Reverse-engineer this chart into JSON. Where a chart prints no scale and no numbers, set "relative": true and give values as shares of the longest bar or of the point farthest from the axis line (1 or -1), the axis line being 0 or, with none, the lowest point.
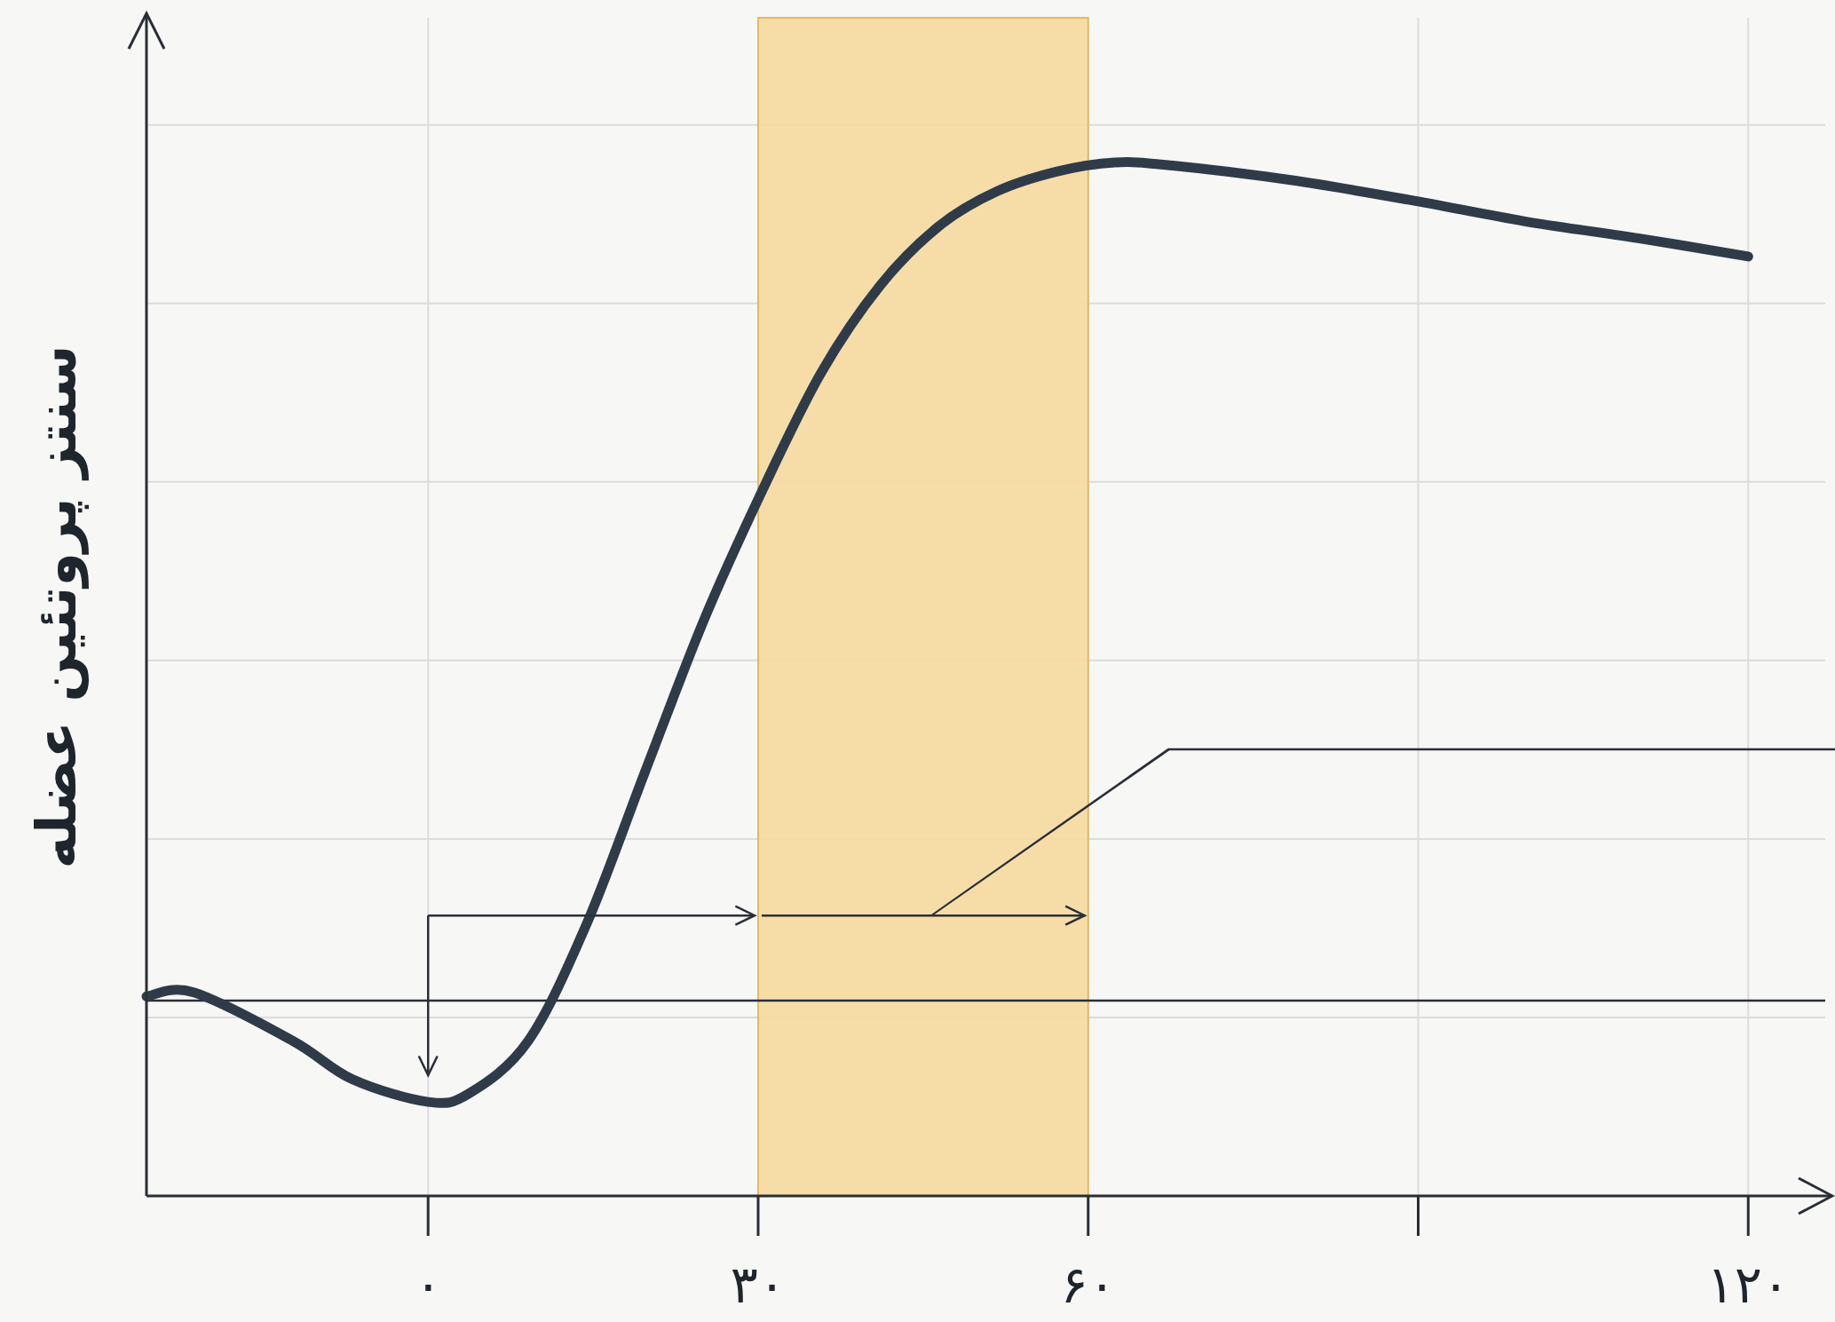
{
  "chart_data": {
    "type": "line",
    "relative": true,
    "ylabel": "سنتز پروتئین عضله",
    "xlim": [
      -25.6,
      127
    ],
    "xticks": [
      {
        "value": 0,
        "label": "۰"
      },
      {
        "value": 30,
        "label": "۳۰"
      },
      {
        "value": 60,
        "label": "۶۰"
      },
      {
        "value": 90,
        "label": null
      },
      {
        "value": 120,
        "label": "۱۲۰"
      }
    ],
    "grid": true,
    "series": [
      {
        "color": "#2f3b48",
        "x": [
          -25.6,
          -21.3,
          -12.3,
          -6.9,
          0,
          3.7,
          9.1,
          14.4,
          19.7,
          25.1,
          30.4,
          35.7,
          41.1,
          46.4,
          51.7,
          57.1,
          62.4,
          67.7,
          78.4,
          89.1,
          99.7,
          110.4,
          120
        ],
        "values": [
          0.193,
          0.197,
          0.15,
          0.113,
          0.091,
          0.099,
          0.15,
          0.263,
          0.41,
          0.558,
          0.683,
          0.796,
          0.881,
          0.938,
          0.972,
          0.991,
          1.0,
          0.997,
          0.983,
          0.964,
          0.943,
          0.926,
          0.909
        ]
      }
    ],
    "bands": [
      {
        "axis": "x",
        "from": 30,
        "to": 60,
        "color": "#f5d9a0"
      }
    ],
    "ref_lines": [
      {
        "axis": "y",
        "value": 0.189,
        "color": "#2a2f36"
      }
    ]
  }
}
